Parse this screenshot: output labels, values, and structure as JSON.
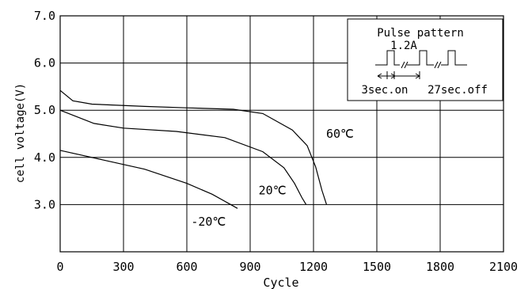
{
  "chart_data": {
    "type": "line",
    "title": "",
    "xlabel": "Cycle",
    "ylabel": "cell voltage(V)",
    "xlim": [
      0,
      2100
    ],
    "ylim": [
      2.0,
      7.0
    ],
    "x_ticks": [
      0,
      300,
      600,
      900,
      1200,
      1500,
      1800,
      2100
    ],
    "x_tick_labels": [
      "0",
      "300",
      "600",
      "900",
      "1200",
      "1500",
      "1800",
      "2100"
    ],
    "y_ticks": [
      3.0,
      4.0,
      5.0,
      6.0,
      7.0
    ],
    "y_tick_labels": [
      "3.0",
      "4.0",
      "5.0",
      "6.0",
      "7.0"
    ],
    "grid": true,
    "legend": "none",
    "line_color": "#000000",
    "series": [
      {
        "name": "60℃",
        "label_at": [
          1260,
          4.42
        ],
        "points": [
          [
            0,
            5.42
          ],
          [
            60,
            5.2
          ],
          [
            150,
            5.13
          ],
          [
            400,
            5.08
          ],
          [
            600,
            5.05
          ],
          [
            820,
            5.02
          ],
          [
            960,
            4.93
          ],
          [
            1100,
            4.58
          ],
          [
            1170,
            4.25
          ],
          [
            1210,
            3.8
          ],
          [
            1240,
            3.3
          ],
          [
            1262,
            3.0
          ]
        ]
      },
      {
        "name": "20℃",
        "label_at": [
          940,
          3.22
        ],
        "points": [
          [
            0,
            5.0
          ],
          [
            160,
            4.72
          ],
          [
            300,
            4.62
          ],
          [
            550,
            4.55
          ],
          [
            780,
            4.42
          ],
          [
            960,
            4.12
          ],
          [
            1060,
            3.78
          ],
          [
            1110,
            3.45
          ],
          [
            1145,
            3.15
          ],
          [
            1165,
            3.0
          ]
        ]
      },
      {
        "name": "-20℃",
        "label_at": [
          620,
          2.55
        ],
        "points": [
          [
            0,
            4.15
          ],
          [
            200,
            3.95
          ],
          [
            400,
            3.75
          ],
          [
            600,
            3.45
          ],
          [
            720,
            3.22
          ],
          [
            800,
            3.02
          ],
          [
            840,
            2.92
          ]
        ]
      }
    ],
    "inset": {
      "title": "Pulse pattern",
      "current_label": "1.2A",
      "on_label": "3sec.on",
      "off_label": "27sec.off"
    }
  }
}
